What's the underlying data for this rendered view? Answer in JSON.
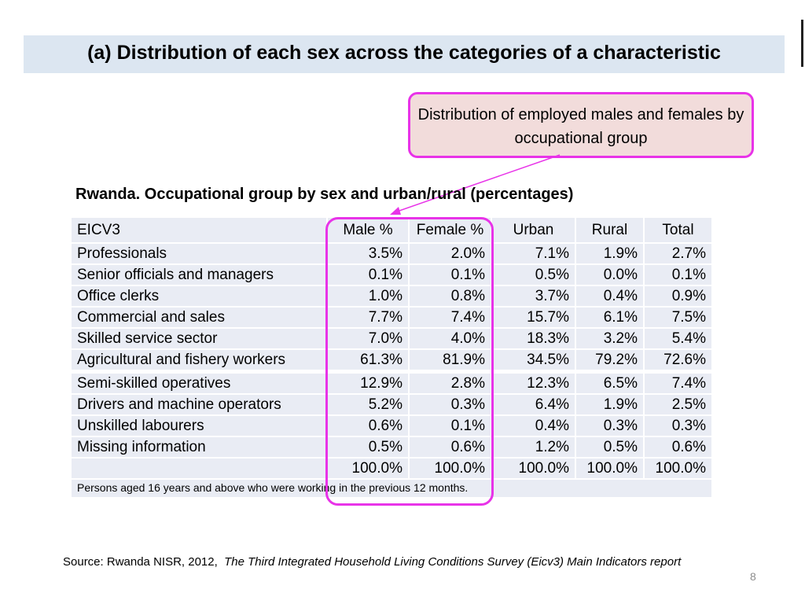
{
  "slide": {
    "title": "(a) Distribution of each sex across the categories of a characteristic",
    "callout": "Distribution of employed males and females by occupational group",
    "table_caption": "Rwanda. Occupational group by sex and urban/rural (percentages)",
    "source_prefix": "Source: Rwanda NISR, 2012,",
    "source_title": "The Third Integrated Household Living Conditions Survey (Eicv3) Main Indicators report",
    "page_number": "8",
    "highlight_color": "#e833e8"
  },
  "table": {
    "headers": [
      "EICV3",
      "Male  %",
      "Female %",
      "Urban",
      "Rural",
      "Total"
    ],
    "rows": [
      [
        "Professionals",
        "3.5%",
        "2.0%",
        "7.1%",
        "1.9%",
        "2.7%"
      ],
      [
        "Senior officials and managers",
        "0.1%",
        "0.1%",
        "0.5%",
        "0.0%",
        "0.1%"
      ],
      [
        "Office clerks",
        "1.0%",
        "0.8%",
        "3.7%",
        "0.4%",
        "0.9%"
      ],
      [
        "Commercial and sales",
        "7.7%",
        "7.4%",
        "15.7%",
        "6.1%",
        "7.5%"
      ],
      [
        "Skilled service sector",
        "7.0%",
        "4.0%",
        "18.3%",
        "3.2%",
        "5.4%"
      ],
      [
        "Agricultural and fishery workers",
        "61.3%",
        "81.9%",
        "34.5%",
        "79.2%",
        "72.6%"
      ],
      [
        "Semi-skilled operatives",
        "12.9%",
        "2.8%",
        "12.3%",
        "6.5%",
        "7.4%"
      ],
      [
        "Drivers and machine operators",
        "5.2%",
        "0.3%",
        "6.4%",
        "1.9%",
        "2.5%"
      ],
      [
        "Unskilled labourers",
        "0.6%",
        "0.1%",
        "0.4%",
        "0.3%",
        "0.3%"
      ],
      [
        "Missing information",
        "0.5%",
        "0.6%",
        "1.2%",
        "0.5%",
        "0.6%"
      ],
      [
        "",
        "100.0%",
        "100.0%",
        "100.0%",
        "100.0%",
        "100.0%"
      ]
    ],
    "note": "Persons aged 16 years and above who were working in the previous 12 months."
  }
}
